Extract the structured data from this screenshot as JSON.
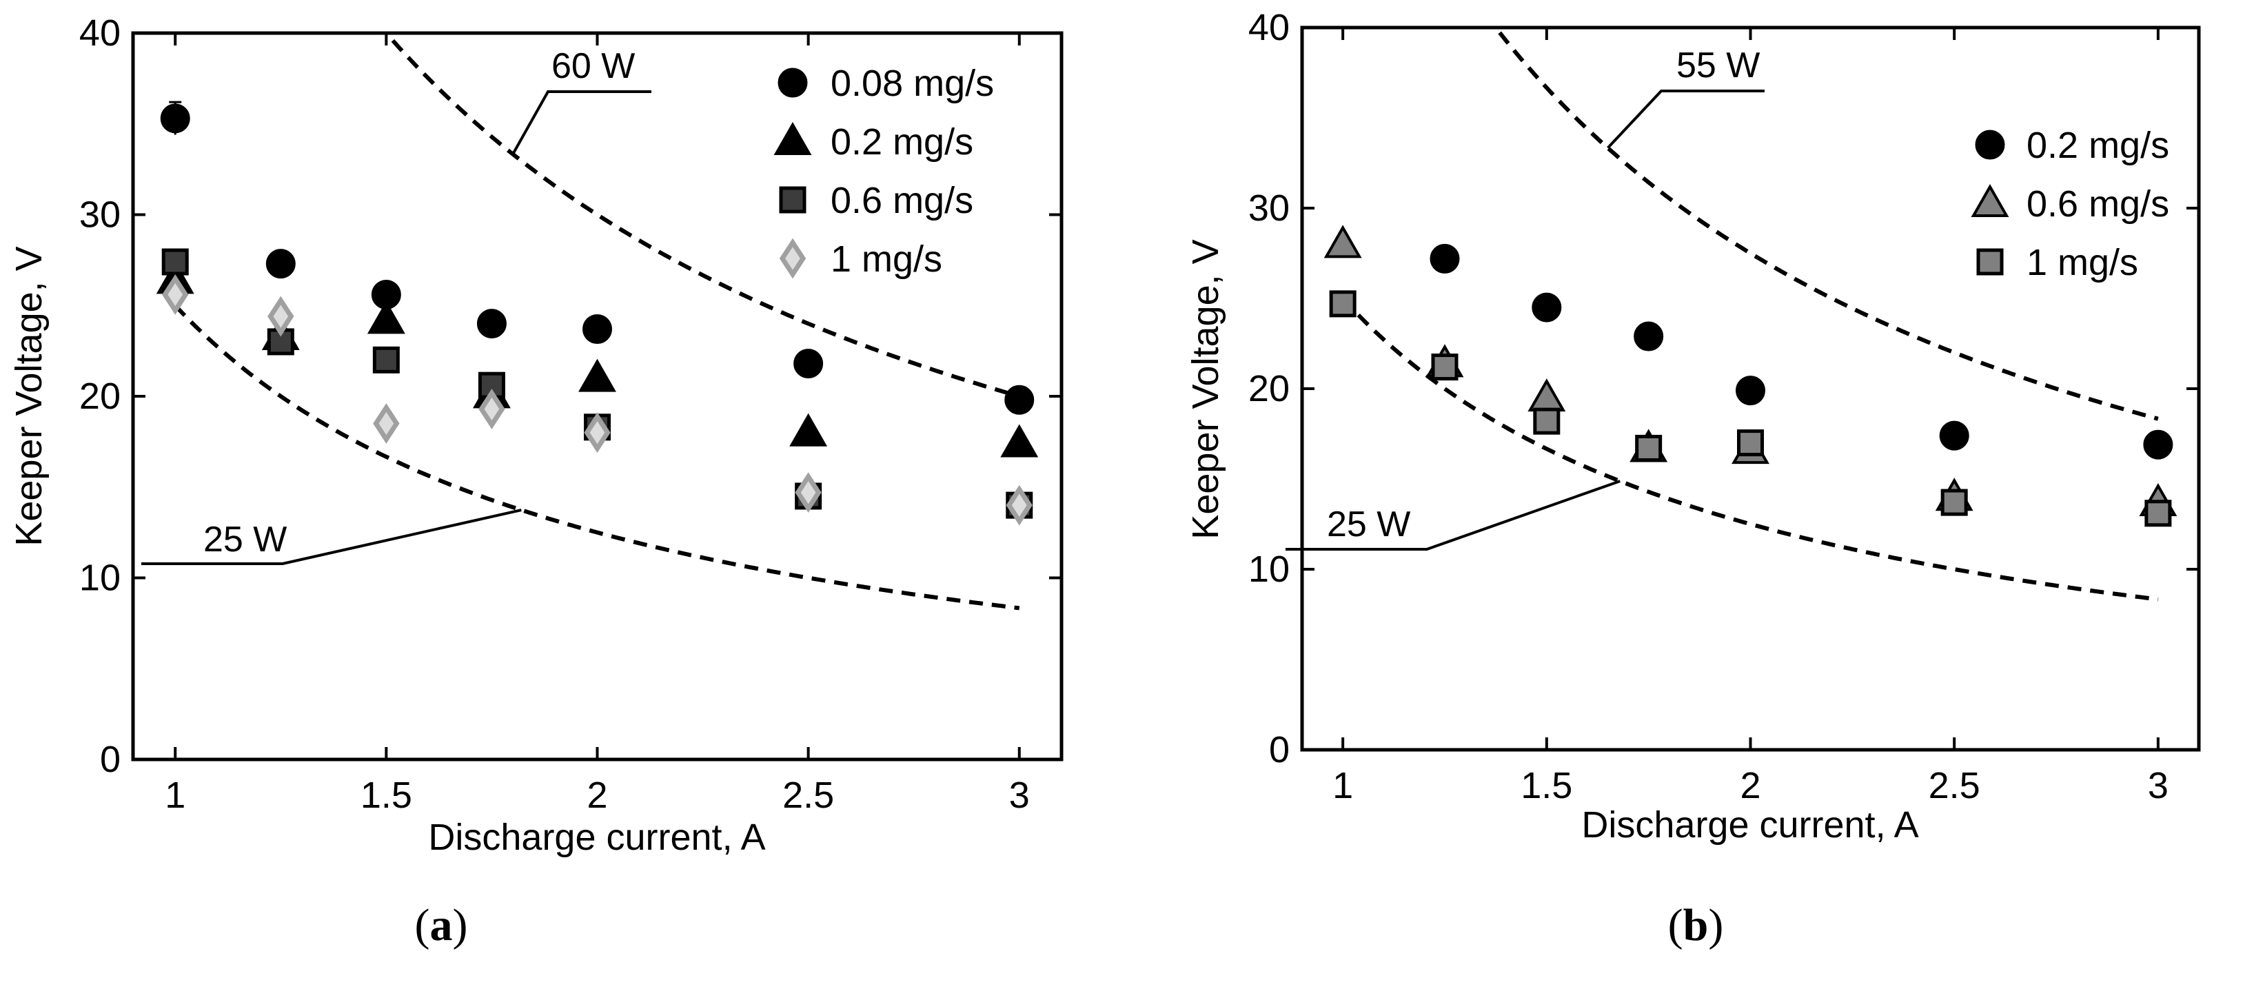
{
  "chart_data": [
    {
      "panel_label": "a",
      "type": "scatter",
      "title": "",
      "xlabel": "Discharge current, A",
      "ylabel": "Keeper Voltage, V",
      "xlim": [
        0.9,
        3.1
      ],
      "ylim": [
        0,
        40
      ],
      "xticks": [
        1,
        1.5,
        2,
        2.5,
        3
      ],
      "xtick_labels": [
        "1",
        "1.5",
        "2",
        "2.5",
        "3"
      ],
      "yticks": [
        0,
        10,
        20,
        30,
        40
      ],
      "ytick_labels": [
        "0",
        "10",
        "20",
        "30",
        "40"
      ],
      "grid": false,
      "legend_position": "top-right",
      "power_curves": [
        {
          "label": "60 W",
          "power": 60
        },
        {
          "label": "25 W",
          "power": 25
        }
      ],
      "series": [
        {
          "name": "0.08 mg/s",
          "marker": "circle",
          "color": "#000000",
          "x": [
            1,
            1.25,
            1.5,
            1.75,
            2,
            2.5,
            3
          ],
          "y": [
            35.3,
            27.3,
            25.6,
            24.0,
            23.7,
            21.8,
            19.8
          ],
          "err": [
            0.9,
            0.7,
            0.6,
            0.5,
            0.5,
            0.4,
            0.4
          ]
        },
        {
          "name": "0.2 mg/s",
          "marker": "triangle",
          "color": "#000000",
          "x": [
            1,
            1.25,
            1.5,
            1.75,
            2,
            2.5,
            3
          ],
          "y": [
            26.4,
            23.3,
            24.2,
            20.1,
            21.0,
            18.0,
            17.4
          ],
          "err": [
            0.4,
            0.4,
            0.4,
            0.4,
            0.4,
            0.4,
            0.4
          ]
        },
        {
          "name": "0.6 mg/s",
          "marker": "square",
          "color": "#3c3c3c",
          "x": [
            1,
            1.25,
            1.5,
            1.75,
            2,
            2.5,
            3
          ],
          "y": [
            27.4,
            23.0,
            22.0,
            20.6,
            18.3,
            14.5,
            14.0
          ],
          "err": [
            0.4,
            0.4,
            0.4,
            0.4,
            0.4,
            0.4,
            0.4
          ]
        },
        {
          "name": "1 mg/s",
          "marker": "diamond",
          "color": "#a0a0a0",
          "x": [
            1,
            1.25,
            1.5,
            1.75,
            2,
            2.5,
            3
          ],
          "y": [
            25.6,
            24.4,
            18.5,
            19.3,
            18.0,
            14.7,
            14.0
          ],
          "err": [
            0.4,
            0.4,
            0.4,
            0.4,
            0.4,
            0.4,
            0.4
          ]
        }
      ]
    },
    {
      "panel_label": "b",
      "type": "scatter",
      "title": "",
      "xlabel": "Discharge current, A",
      "ylabel": "Keeper Voltage, V",
      "xlim": [
        0.9,
        3.1
      ],
      "ylim": [
        0,
        40
      ],
      "xticks": [
        1,
        1.5,
        2,
        2.5,
        3
      ],
      "xtick_labels": [
        "1",
        "1.5",
        "2",
        "2.5",
        "3"
      ],
      "yticks": [
        0,
        10,
        20,
        30,
        40
      ],
      "ytick_labels": [
        "0",
        "10",
        "20",
        "30",
        "40"
      ],
      "grid": false,
      "legend_position": "top-right",
      "power_curves": [
        {
          "label": "55 W",
          "power": 55
        },
        {
          "label": "25 W",
          "power": 25
        }
      ],
      "series": [
        {
          "name": "0.2 mg/s",
          "marker": "circle",
          "color": "#000000",
          "x": [
            1.25,
            1.5,
            1.75,
            2,
            2.5,
            3
          ],
          "y": [
            27.2,
            24.5,
            22.9,
            19.9,
            17.4,
            16.9
          ],
          "err": [
            0.6,
            0.6,
            0.5,
            0.3,
            0.3,
            0.3
          ]
        },
        {
          "name": "0.6 mg/s",
          "marker": "triangle",
          "color": "#808080",
          "x": [
            1,
            1.25,
            1.5,
            1.75,
            2,
            2.5,
            3
          ],
          "y": [
            28.0,
            21.4,
            19.5,
            16.7,
            16.6,
            14.0,
            13.7
          ],
          "err": [
            0.4,
            0.4,
            0.4,
            0.4,
            0.4,
            0.4,
            0.4
          ]
        },
        {
          "name": "1 mg/s",
          "marker": "square",
          "color": "#808080",
          "x": [
            1,
            1.25,
            1.5,
            1.75,
            2,
            2.5,
            3
          ],
          "y": [
            24.7,
            21.2,
            18.2,
            16.7,
            17.0,
            13.7,
            13.1
          ],
          "err": [
            0.4,
            0.4,
            0.4,
            0.4,
            0.4,
            0.4,
            0.4
          ]
        }
      ]
    }
  ],
  "captions": {
    "a": {
      "open": "(",
      "label": "a",
      "close": ")"
    },
    "b": {
      "open": "(",
      "label": "b",
      "close": ")"
    }
  }
}
